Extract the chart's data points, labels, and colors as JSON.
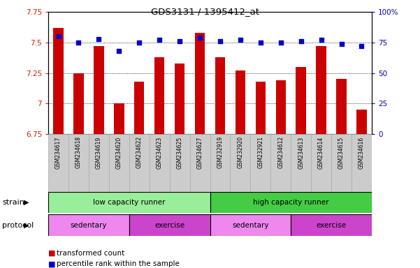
{
  "title": "GDS3131 / 1395412_at",
  "samples": [
    "GSM234617",
    "GSM234618",
    "GSM234619",
    "GSM234620",
    "GSM234622",
    "GSM234623",
    "GSM234625",
    "GSM234627",
    "GSM232919",
    "GSM232920",
    "GSM232921",
    "GSM234612",
    "GSM234613",
    "GSM234614",
    "GSM234615",
    "GSM234616"
  ],
  "bar_values": [
    7.62,
    7.25,
    7.47,
    7.0,
    7.18,
    7.38,
    7.33,
    7.58,
    7.38,
    7.27,
    7.18,
    7.19,
    7.3,
    7.47,
    7.2,
    6.95
  ],
  "dot_values": [
    80,
    75,
    78,
    68,
    75,
    77,
    76,
    79,
    76,
    77,
    75,
    75,
    76,
    77,
    74,
    72
  ],
  "ylim_left": [
    6.75,
    7.75
  ],
  "ylim_right": [
    0,
    100
  ],
  "yticks_left": [
    6.75,
    7.0,
    7.25,
    7.5,
    7.75
  ],
  "yticks_left_labels": [
    "6.75",
    "7",
    "7.25",
    "7.5",
    "7.75"
  ],
  "yticks_right": [
    0,
    25,
    50,
    75,
    100
  ],
  "yticks_right_labels": [
    "0",
    "25",
    "50",
    "75",
    "100%"
  ],
  "hlines": [
    7.0,
    7.25,
    7.5
  ],
  "bar_color": "#cc0000",
  "dot_color": "#0000cc",
  "bar_width": 0.5,
  "strain_groups": [
    {
      "label": "low capacity runner",
      "start": 0,
      "end": 8,
      "color": "#99ee99"
    },
    {
      "label": "high capacity runner",
      "start": 8,
      "end": 16,
      "color": "#44cc44"
    }
  ],
  "protocol_groups": [
    {
      "label": "sedentary",
      "start": 0,
      "end": 4,
      "color": "#ee88ee"
    },
    {
      "label": "exercise",
      "start": 4,
      "end": 8,
      "color": "#cc44cc"
    },
    {
      "label": "sedentary",
      "start": 8,
      "end": 12,
      "color": "#ee88ee"
    },
    {
      "label": "exercise",
      "start": 12,
      "end": 16,
      "color": "#cc44cc"
    }
  ],
  "legend_items": [
    {
      "label": "transformed count",
      "color": "#cc0000"
    },
    {
      "label": "percentile rank within the sample",
      "color": "#0000cc"
    }
  ],
  "strain_label": "strain",
  "protocol_label": "protocol",
  "bg_color": "#ffffff",
  "tick_label_color_left": "#cc2200",
  "tick_label_color_right": "#0000cc",
  "sample_box_color": "#cccccc",
  "sample_box_edge": "#aaaaaa"
}
